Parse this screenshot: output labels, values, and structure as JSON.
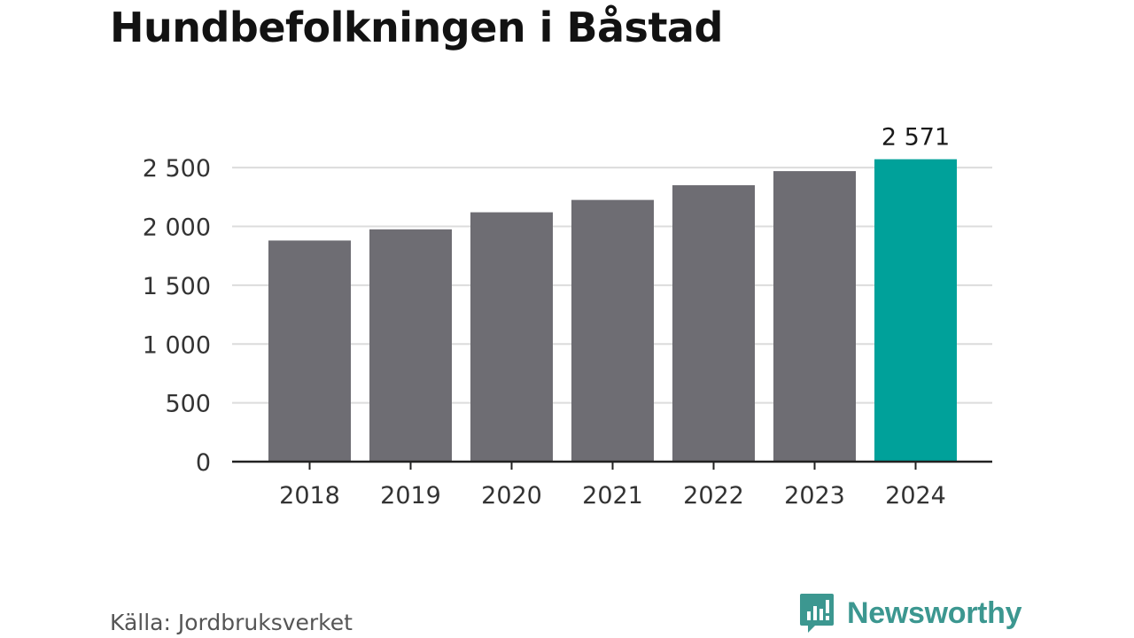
{
  "title": "Hundbefolkningen i Båstad",
  "source": "Källa: Jordbruksverket",
  "brand": {
    "name": "Newsworthy",
    "icon": "newsworthy-logo-icon",
    "color": "#3c9790"
  },
  "colors": {
    "bar": "#6e6d73",
    "highlight": "#00a19a",
    "grid": "#dcdcdc",
    "axis": "#222222",
    "text": "#333333"
  },
  "chart_data": {
    "type": "bar",
    "title": "Hundbefolkningen i Båstad",
    "xlabel": "",
    "ylabel": "",
    "categories": [
      "2018",
      "2019",
      "2020",
      "2021",
      "2022",
      "2023",
      "2024"
    ],
    "values": [
      1880,
      1975,
      2120,
      2225,
      2350,
      2470,
      2571
    ],
    "highlight_index": 6,
    "data_labels": [
      {
        "index": 6,
        "text": "2 571"
      }
    ],
    "ylim": [
      0,
      2600
    ],
    "yticks": [
      0,
      500,
      1000,
      1500,
      2000,
      2500
    ],
    "ytick_labels": [
      "0",
      "500",
      "1 000",
      "1 500",
      "2 000",
      "2 500"
    ],
    "grid": true,
    "legend": "none"
  }
}
